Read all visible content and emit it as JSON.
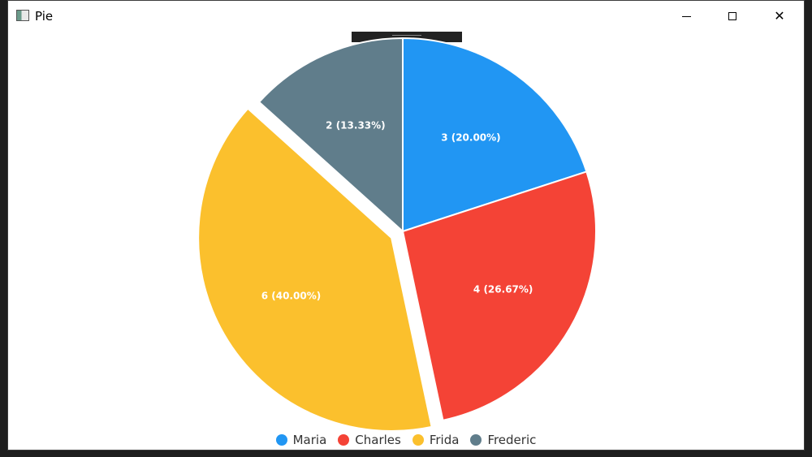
{
  "window": {
    "title": "Pie",
    "icons": {
      "app": "app-window-icon",
      "minimize": "minimize-icon",
      "maximize": "maximize-icon",
      "close": "close-icon"
    }
  },
  "chart_data": {
    "type": "pie",
    "title": "",
    "categories": [
      "Maria",
      "Charles",
      "Frida",
      "Frederic"
    ],
    "values": [
      3,
      4,
      6,
      2
    ],
    "labels": [
      "3 (20.00%)",
      "4 (26.67%)",
      "6 (40.00%)",
      "2 (13.33%)"
    ],
    "colors": [
      "#2196f3",
      "#f44336",
      "#fbc02d",
      "#607d8b"
    ],
    "exploded": "Frida",
    "start_angle_deg": -90,
    "legend_position": "bottom"
  }
}
